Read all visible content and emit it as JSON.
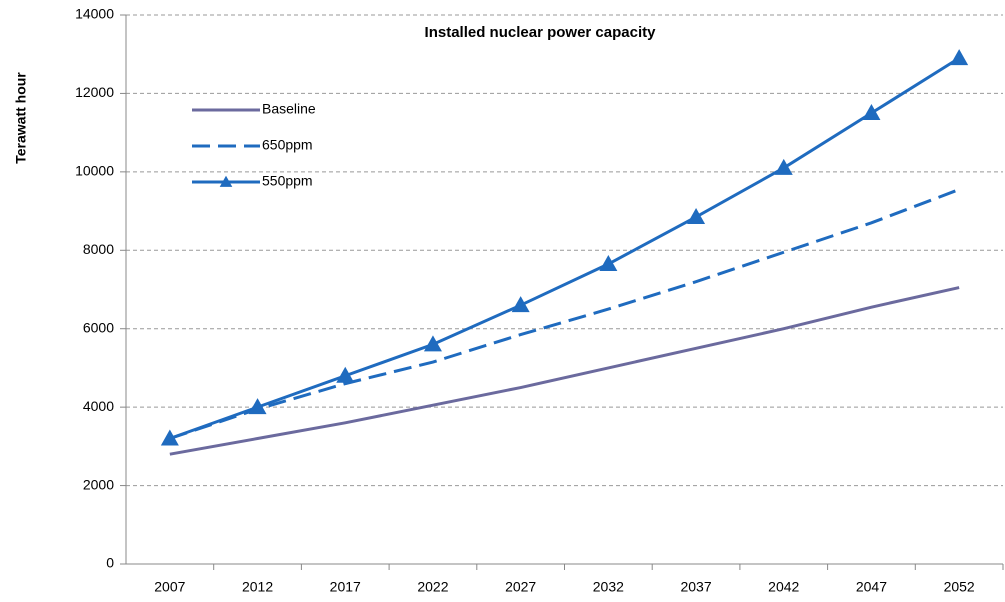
{
  "chart_data": {
    "type": "line",
    "title": "Installed nuclear power capacity",
    "y_label": "Terawatt hour",
    "categories": [
      "2007",
      "2012",
      "2017",
      "2022",
      "2027",
      "2032",
      "2037",
      "2042",
      "2047",
      "2052"
    ],
    "series": [
      {
        "name": "Baseline",
        "color": "#6b6a9e",
        "line_style": "solid",
        "values": [
          2800,
          3200,
          3600,
          4050,
          4500,
          5000,
          5500,
          6000,
          6550,
          7050
        ]
      },
      {
        "name": "650ppm",
        "color": "#1f6bbf",
        "line_style": "dashed",
        "values": [
          3200,
          3950,
          4600,
          5150,
          5850,
          6500,
          7200,
          7950,
          8700,
          9550
        ]
      },
      {
        "name": "550ppm",
        "color": "#1f6bbf",
        "line_style": "solid",
        "marker": "triangle",
        "values": [
          3200,
          4000,
          4800,
          5600,
          6600,
          7650,
          8850,
          10100,
          11500,
          12900
        ]
      }
    ],
    "ylim": [
      0,
      14000
    ],
    "yticks": [
      0,
      2000,
      4000,
      6000,
      8000,
      10000,
      12000,
      14000
    ],
    "grid": true,
    "legend": "upper left"
  }
}
